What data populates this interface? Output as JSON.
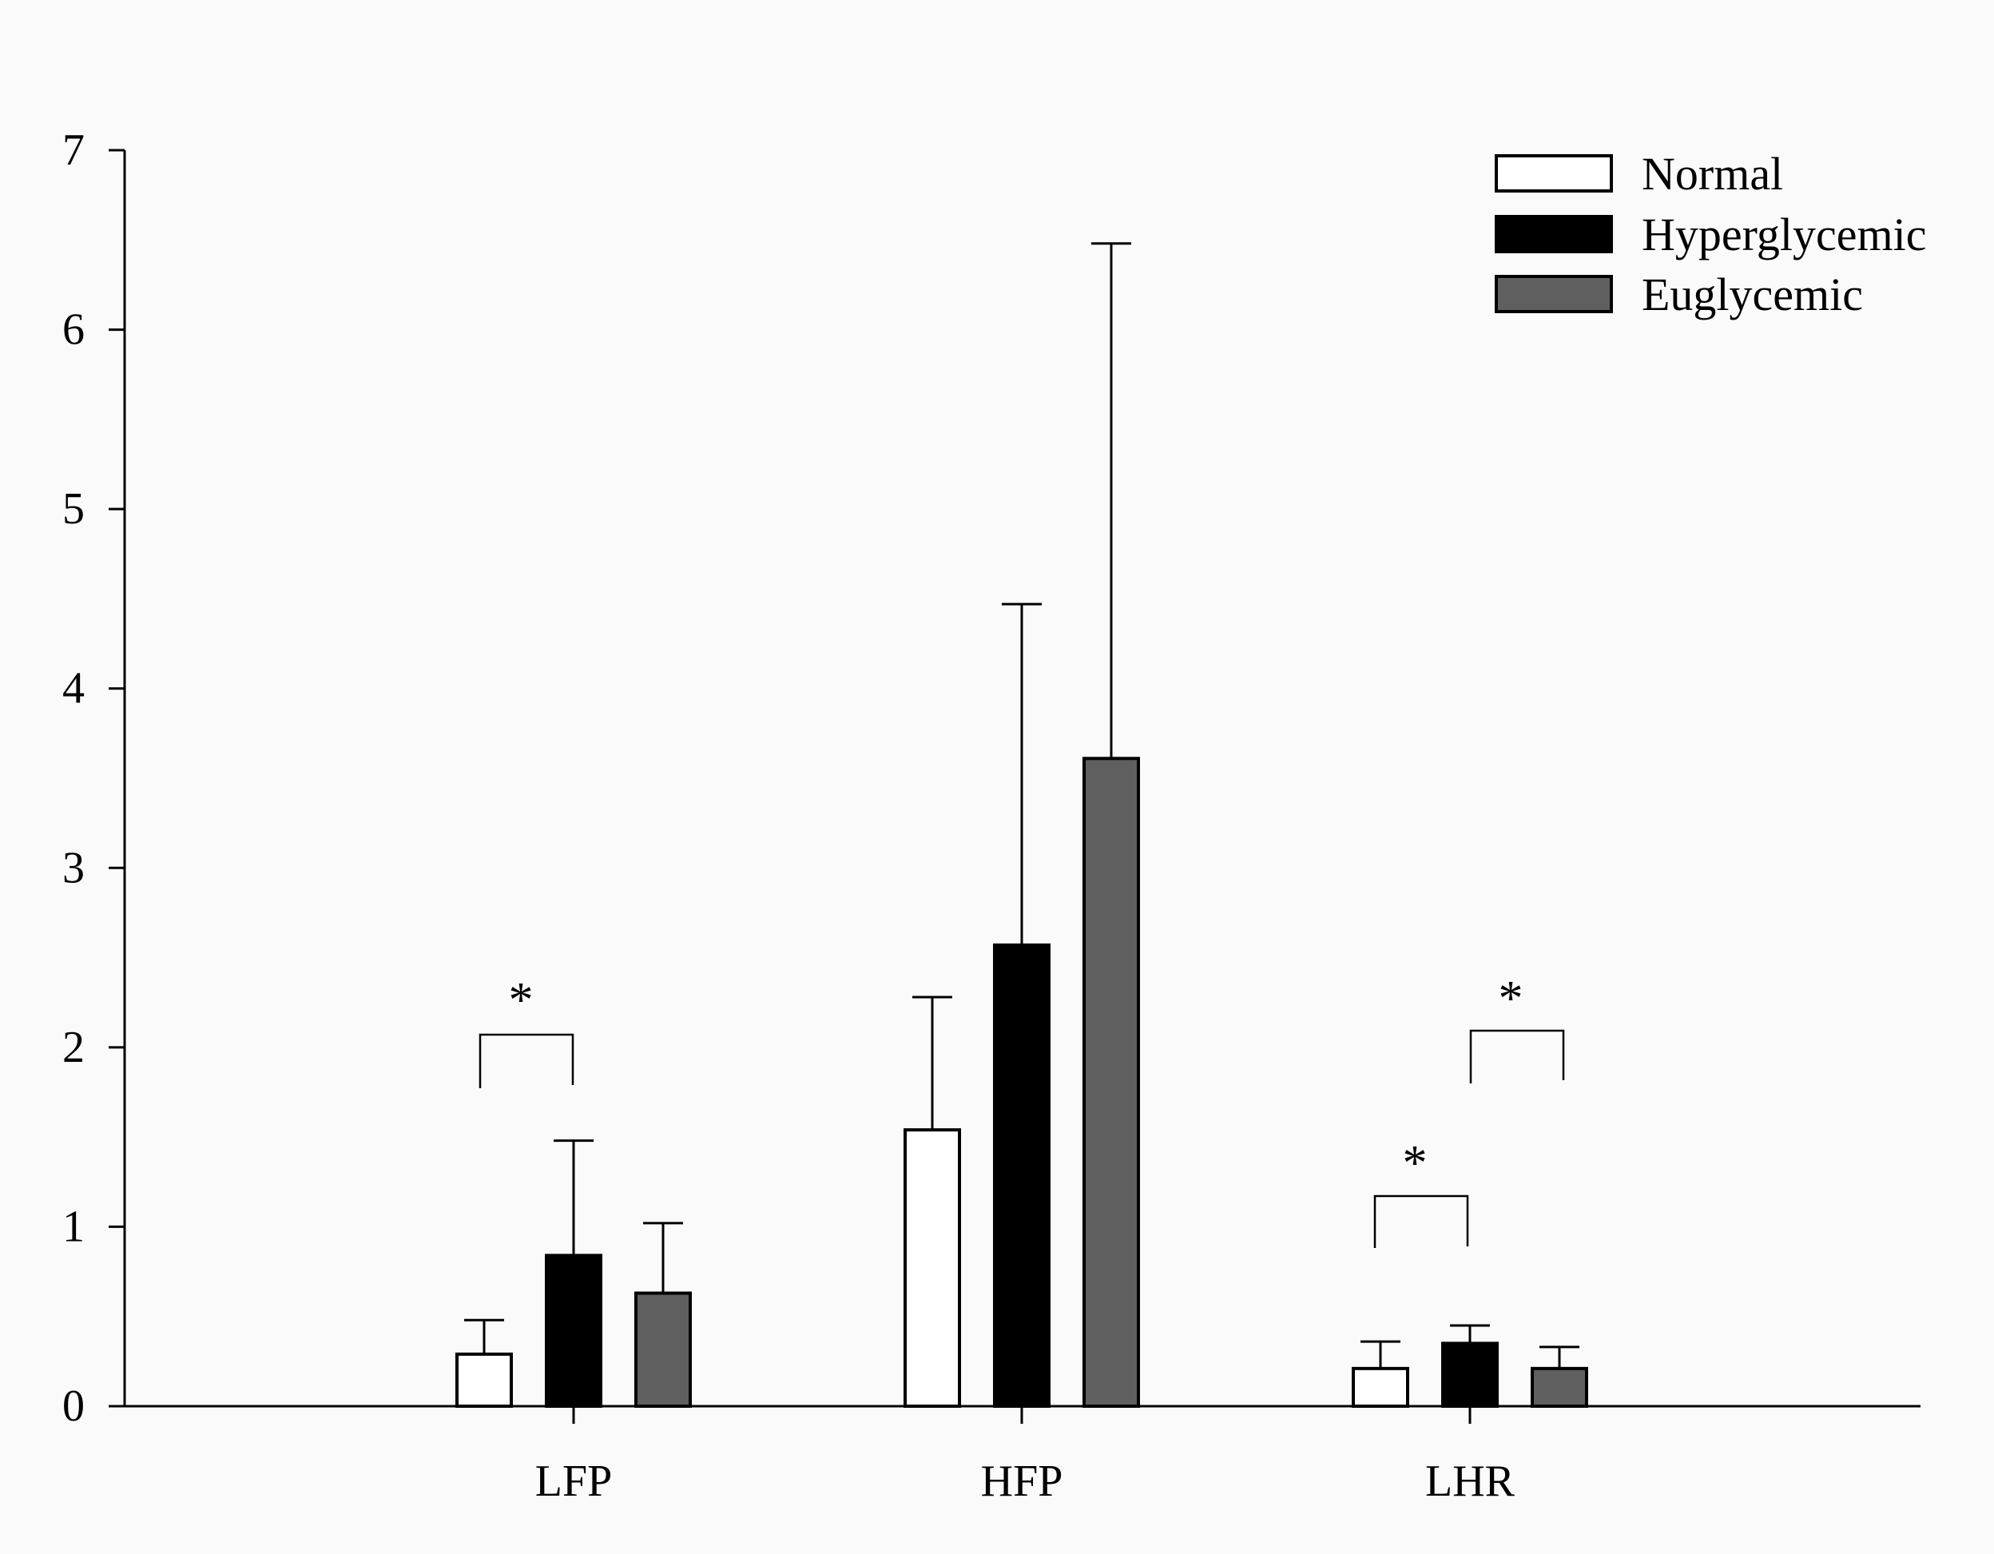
{
  "chart_data": {
    "type": "bar",
    "title": "",
    "xlabel": "",
    "ylabel": "",
    "categories": [
      "LFP",
      "HFP",
      "LHR"
    ],
    "series": [
      {
        "name": "Normal",
        "color": "#ffffff",
        "values": [
          0.29,
          1.54,
          0.21
        ],
        "errors": [
          0.19,
          0.74,
          0.15
        ]
      },
      {
        "name": "Hyperglycemic",
        "color": "#000000",
        "values": [
          0.84,
          2.57,
          0.35
        ],
        "errors": [
          0.64,
          1.9,
          0.1
        ]
      },
      {
        "name": "Euglycemic",
        "color": "#5f5f5f",
        "values": [
          0.63,
          3.61,
          0.21
        ],
        "errors": [
          0.39,
          2.87,
          0.12
        ]
      }
    ],
    "ylim": [
      0,
      7
    ],
    "yticks": [
      0,
      1,
      2,
      3,
      4,
      5,
      6,
      7
    ],
    "legend_position": "top-right",
    "significance": [
      {
        "category": "LFP",
        "between": [
          "Normal",
          "Hyperglycemic"
        ],
        "label": "*"
      },
      {
        "category": "LHR",
        "between": [
          "Normal",
          "Hyperglycemic"
        ],
        "label": "*"
      },
      {
        "category": "LHR",
        "between": [
          "Hyperglycemic",
          "Euglycemic"
        ],
        "label": "*"
      }
    ]
  }
}
